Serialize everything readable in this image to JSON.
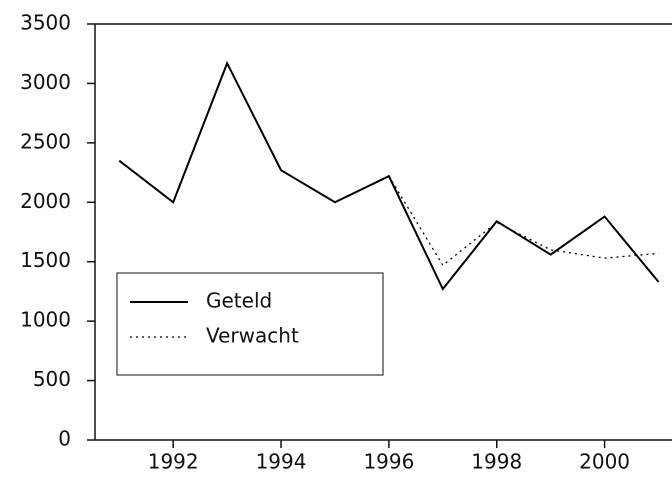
{
  "chart_data": {
    "type": "line",
    "x": [
      1991,
      1992,
      1993,
      1994,
      1995,
      1996,
      1997,
      1998,
      1999,
      2000,
      2001
    ],
    "series": [
      {
        "name": "Geteld",
        "color": "#000000",
        "dash": "solid",
        "values": [
          2350,
          2000,
          3170,
          2270,
          2000,
          2220,
          1270,
          1840,
          1560,
          1880,
          1330
        ]
      },
      {
        "name": "Verwacht",
        "color": "#000000",
        "dash": "dotted",
        "values": [
          null,
          null,
          null,
          null,
          null,
          2220,
          1470,
          1830,
          1600,
          1530,
          1570
        ]
      }
    ],
    "xlim": [
      1990.55,
      2001.25
    ],
    "xticks": [
      1992,
      1994,
      1996,
      1998,
      2000
    ],
    "ylim": [
      0,
      3500
    ],
    "yticks": [
      0,
      500,
      1000,
      1500,
      2000,
      2500,
      3000,
      3500
    ],
    "grid": false,
    "legend": "lower-left"
  }
}
